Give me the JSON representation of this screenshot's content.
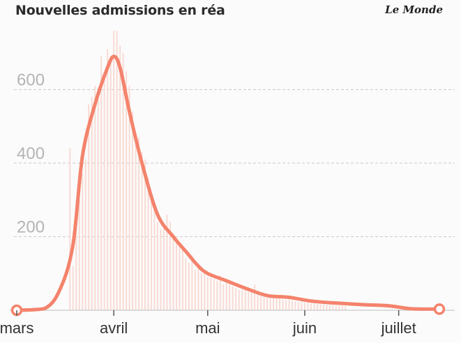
{
  "header": {
    "title": "Nouvelles admissions en réa",
    "brand": "Le Monde"
  },
  "chart_data": {
    "type": "bar",
    "title": "Nouvelles admissions en réa",
    "xlabel": "",
    "ylabel": "",
    "ylim": [
      0,
      760
    ],
    "yticks": [
      200,
      400,
      600
    ],
    "x_tick_labels": [
      "mars",
      "avril",
      "mai",
      "juin",
      "juillet"
    ],
    "x_tick_dates": [
      "2020-03-01",
      "2020-04-01",
      "2020-05-01",
      "2020-06-01",
      "2020-07-01"
    ],
    "x_range": [
      "2020-03-01",
      "2020-07-14"
    ],
    "grid": true,
    "colors": {
      "bars": "#f9d9d2",
      "line": "#f4836c"
    },
    "series": [
      {
        "type": "bar",
        "x_start": "2020-03-18",
        "values": [
          440,
          120,
          240,
          300,
          370,
          410,
          560,
          580,
          610,
          600,
          690,
          630,
          710,
          690,
          760,
          760,
          720,
          700,
          650,
          610,
          540,
          480,
          470,
          430,
          410,
          360,
          320,
          280,
          240,
          220,
          230,
          260,
          240,
          200,
          190,
          180,
          170,
          140,
          130,
          150,
          110,
          120,
          100,
          105,
          90,
          100,
          85,
          80,
          95,
          70,
          75,
          75,
          65,
          60,
          55,
          55,
          60,
          50,
          48,
          70,
          45,
          40,
          42,
          38,
          40,
          36,
          34,
          32,
          30,
          28,
          28,
          26,
          24,
          22,
          22,
          20,
          20,
          18,
          18,
          17,
          16,
          16,
          15,
          14,
          14,
          13,
          12,
          12,
          11
        ]
      },
      {
        "type": "line",
        "points": [
          [
            "2020-03-01",
            0
          ],
          [
            "2020-03-10",
            5
          ],
          [
            "2020-03-15",
            60
          ],
          [
            "2020-03-19",
            180
          ],
          [
            "2020-03-22",
            420
          ],
          [
            "2020-03-26",
            560
          ],
          [
            "2020-03-30",
            660
          ],
          [
            "2020-04-01",
            690
          ],
          [
            "2020-04-03",
            660
          ],
          [
            "2020-04-06",
            540
          ],
          [
            "2020-04-10",
            400
          ],
          [
            "2020-04-15",
            260
          ],
          [
            "2020-04-20",
            200
          ],
          [
            "2020-04-24",
            160
          ],
          [
            "2020-04-28",
            120
          ],
          [
            "2020-05-01",
            100
          ],
          [
            "2020-05-07",
            80
          ],
          [
            "2020-05-13",
            60
          ],
          [
            "2020-05-20",
            40
          ],
          [
            "2020-05-27",
            35
          ],
          [
            "2020-06-03",
            25
          ],
          [
            "2020-06-10",
            20
          ],
          [
            "2020-06-20",
            15
          ],
          [
            "2020-06-28",
            12
          ],
          [
            "2020-07-05",
            4
          ],
          [
            "2020-07-14",
            3
          ]
        ]
      }
    ]
  }
}
